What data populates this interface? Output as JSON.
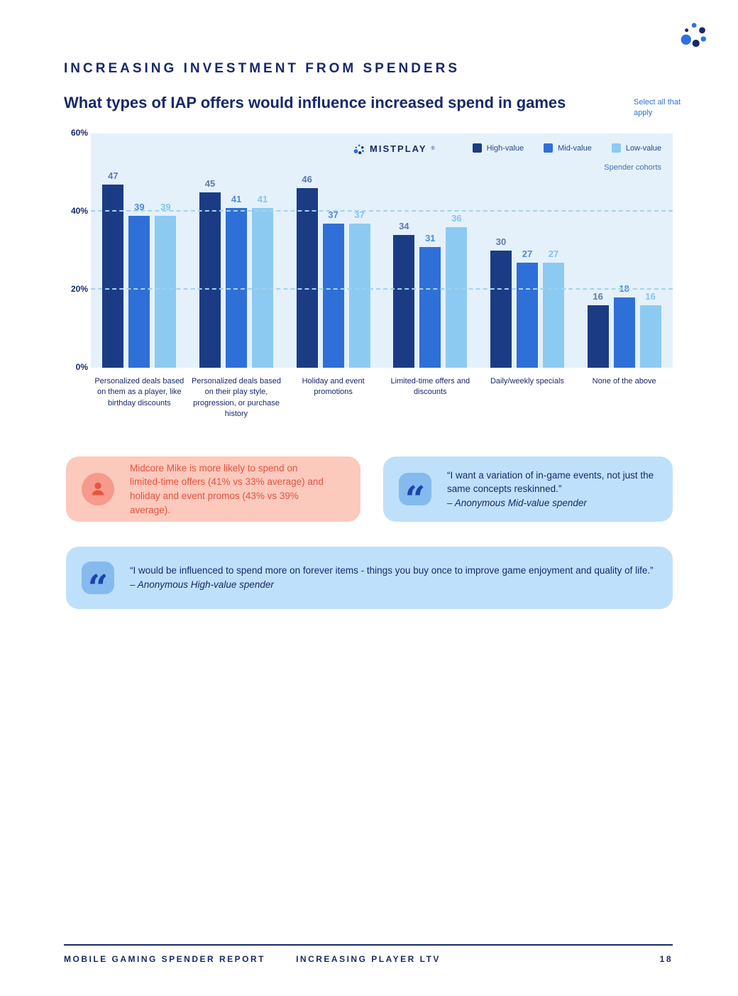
{
  "brand": {
    "wordmark": "MISTPLAY",
    "reg": "®"
  },
  "header": {
    "eyebrow": "INCREASING INVESTMENT FROM SPENDERS",
    "title": "What types of IAP offers would influence increased spend in games",
    "note": "Select all that apply"
  },
  "chart_data": {
    "type": "bar",
    "title": "What types of IAP offers would influence increased spend in games",
    "categories": [
      "Personalized deals based on them as a player, like birthday discounts",
      "Personalized deals based on their play style, progression, or purchase history",
      "Holiday and event promotions",
      "Limited-time offers and discounts",
      "Daily/weekly specials",
      "None of the above"
    ],
    "series": [
      {
        "name": "High-value",
        "color": "#1b3c85",
        "label_color": "#5e7ba8",
        "values": [
          47,
          45,
          46,
          34,
          30,
          16
        ]
      },
      {
        "name": "Mid-value",
        "color": "#2f6fd8",
        "label_color": "#4f8ade",
        "values": [
          39,
          41,
          37,
          31,
          27,
          18
        ]
      },
      {
        "name": "Low-value",
        "color": "#8ccaf2",
        "label_color": "#83c3ee",
        "values": [
          39,
          41,
          37,
          36,
          27,
          16
        ]
      }
    ],
    "ylim": [
      0,
      60
    ],
    "yticks": [
      "60%",
      "40%",
      "20%",
      "0%"
    ],
    "ytick_values": [
      60,
      40,
      20,
      0
    ],
    "gridlines": [
      40,
      20
    ],
    "legend_note": "Spender cohorts",
    "legend_position": "top-right",
    "plot_bg": "#e4f1fb",
    "grid_on": true
  },
  "callouts": {
    "insight": {
      "text": "Midcore Mike is more likely to spend on limited-time offers (41% vs 33% average) and holiday and event promos (43% vs 39% average).",
      "bg": "#fcc9bd",
      "text_color": "#e4533f"
    },
    "quote1": {
      "text": "“I want a variation of in-game events, not just the same concepts reskinned.”",
      "attribution": "– Anonymous Mid-value spender"
    },
    "quote2": {
      "text": "“I would be influenced to spend more on forever items - things you buy once to improve game enjoyment and quality of life.”",
      "attribution": "– Anonymous High-value spender"
    }
  },
  "footer": {
    "left": "MOBILE GAMING SPENDER REPORT",
    "center": "INCREASING PLAYER LTV",
    "page": "18"
  },
  "colors": {
    "navy": "#17296b",
    "link_blue": "#2f6fde",
    "chart_bg": "#e4f1fb",
    "gridline": "#a3d2ef",
    "insight_bg": "#fcc9bd",
    "insight_text": "#e4533f",
    "quote_bg": "#bfe0fb",
    "quote_icon_bg": "#85baee",
    "quote_icon": "#1c44ac"
  }
}
